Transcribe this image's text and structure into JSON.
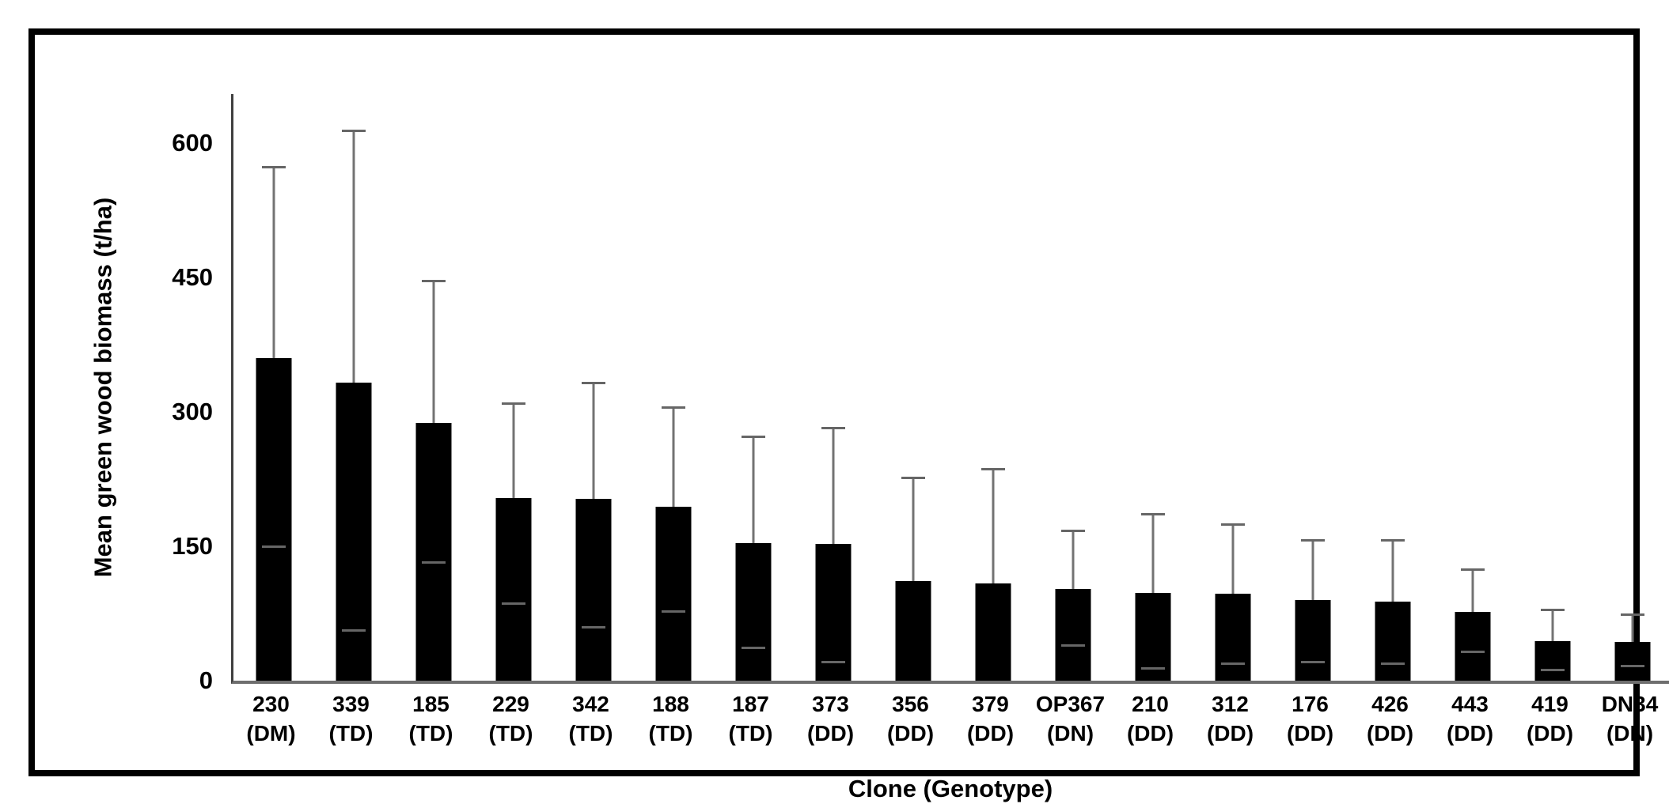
{
  "figure": {
    "background": "#ffffff",
    "border_color": "#000000",
    "bar_color": "#000000",
    "error_bar_color": "#737373",
    "axis_color": "#6e6e6e"
  },
  "chart_data": {
    "type": "bar",
    "title": "",
    "xlabel": "Clone (Genotype)",
    "ylabel": "Mean green wood biomass (t/ha)",
    "ylim": [
      0,
      655
    ],
    "yticks": [
      0,
      150,
      300,
      450,
      600
    ],
    "grid": "off",
    "legend": "none",
    "categories": [
      "230 (DM)",
      "339 (TD)",
      "185 (TD)",
      "229 (TD)",
      "342 (TD)",
      "188 (TD)",
      "187 (TD)",
      "373 (DD)",
      "356 (DD)",
      "379 (DD)",
      "OP367 (DN)",
      "210 (DD)",
      "312 (DD)",
      "176 (DD)",
      "426 (DD)",
      "443 (DD)",
      "419 (DD)",
      "DN34 (DN)"
    ],
    "points": [
      {
        "clone": "230",
        "genotype": "DM",
        "mean": 360,
        "err_top": 573,
        "err_bottom": 150
      },
      {
        "clone": "339",
        "genotype": "TD",
        "mean": 333,
        "err_top": 614,
        "err_bottom": 56
      },
      {
        "clone": "185",
        "genotype": "TD",
        "mean": 288,
        "err_top": 446,
        "err_bottom": 132
      },
      {
        "clone": "229",
        "genotype": "TD",
        "mean": 204,
        "err_top": 309,
        "err_bottom": 86
      },
      {
        "clone": "342",
        "genotype": "TD",
        "mean": 203,
        "err_top": 332,
        "err_bottom": 60
      },
      {
        "clone": "188",
        "genotype": "TD",
        "mean": 194,
        "err_top": 305,
        "err_bottom": 77
      },
      {
        "clone": "187",
        "genotype": "TD",
        "mean": 154,
        "err_top": 272,
        "err_bottom": 37
      },
      {
        "clone": "373",
        "genotype": "DD",
        "mean": 153,
        "err_top": 282,
        "err_bottom": 21
      },
      {
        "clone": "356",
        "genotype": "DD",
        "mean": 111,
        "err_top": 226,
        "err_bottom": 0
      },
      {
        "clone": "379",
        "genotype": "DD",
        "mean": 109,
        "err_top": 236,
        "err_bottom": 0
      },
      {
        "clone": "OP367",
        "genotype": "DN",
        "mean": 102,
        "err_top": 167,
        "err_bottom": 39
      },
      {
        "clone": "210",
        "genotype": "DD",
        "mean": 98,
        "err_top": 186,
        "err_bottom": 14
      },
      {
        "clone": "312",
        "genotype": "DD",
        "mean": 97,
        "err_top": 174,
        "err_bottom": 19
      },
      {
        "clone": "176",
        "genotype": "DD",
        "mean": 90,
        "err_top": 157,
        "err_bottom": 21
      },
      {
        "clone": "426",
        "genotype": "DD",
        "mean": 88,
        "err_top": 157,
        "err_bottom": 19
      },
      {
        "clone": "443",
        "genotype": "DD",
        "mean": 77,
        "err_top": 124,
        "err_bottom": 32
      },
      {
        "clone": "419",
        "genotype": "DD",
        "mean": 44,
        "err_top": 79,
        "err_bottom": 12
      },
      {
        "clone": "DN34",
        "genotype": "DN",
        "mean": 43,
        "err_top": 74,
        "err_bottom": 16
      }
    ]
  }
}
